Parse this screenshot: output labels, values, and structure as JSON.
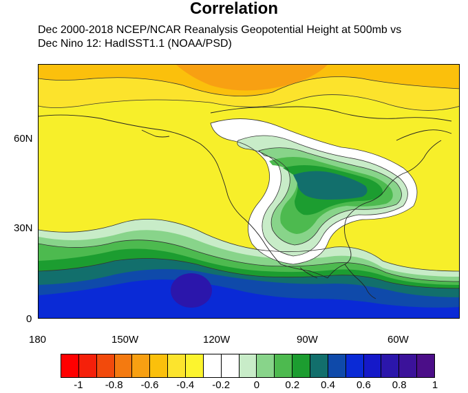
{
  "title": "Correlation",
  "subtitle_line1": "Dec 2000-2018 NCEP/NCAR Reanalysis Geopotential Height at 500mb vs",
  "subtitle_line2": "Dec Nino 12: HadISST1.1 (NOAA/PSD)",
  "map": {
    "region": "North Pacific and North America",
    "lon_range": [
      -180,
      -45
    ],
    "lat_range": [
      0,
      85
    ],
    "x_ticks": [
      "180",
      "150W",
      "120W",
      "90W",
      "60W"
    ],
    "y_ticks": [
      "60N",
      "30N",
      "0"
    ],
    "field": "correlation",
    "features": {
      "negative_max_region": "northern Pacific / Alaska high latitudes",
      "positive_max_region": "Great Lakes / eastern North America",
      "positive_tropical_band": "eastern tropical Pacific near equator"
    }
  },
  "colorbar": {
    "tick_labels": [
      "-1",
      "-0.8",
      "-0.6",
      "-0.4",
      "-0.2",
      "0",
      "0.2",
      "0.4",
      "0.6",
      "0.8",
      "1"
    ],
    "colors": [
      "#ff0000",
      "#f5200a",
      "#f24a0c",
      "#f47a10",
      "#f8a012",
      "#fbc00c",
      "#fce42d",
      "#fcf42e",
      "#ffffff",
      "#ffffff",
      "#c8ecc8",
      "#88d48a",
      "#4dba4f",
      "#1c9d30",
      "#126f6c",
      "#0f4aaa",
      "#0a2ad6",
      "#1519c9",
      "#2b16ab",
      "#3b129a",
      "#4b0e88"
    ]
  }
}
